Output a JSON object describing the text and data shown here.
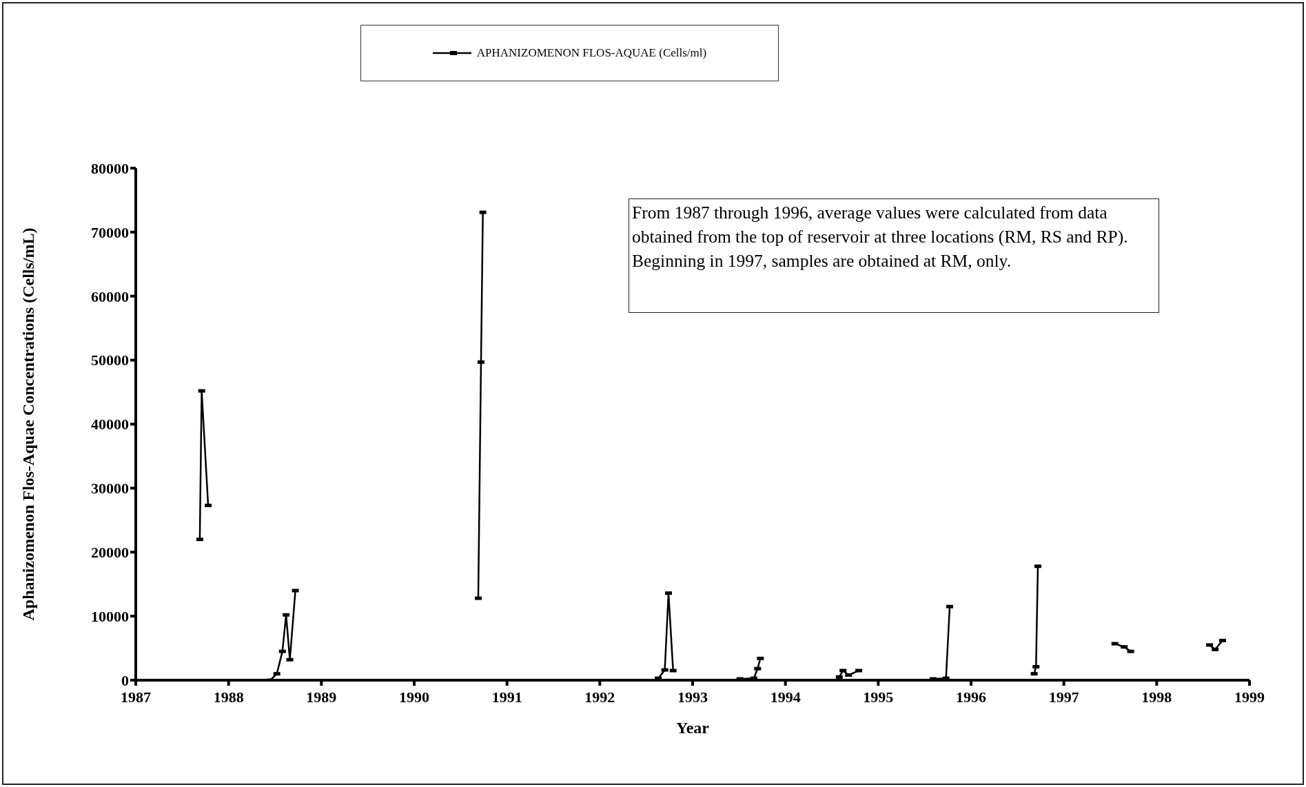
{
  "chart_data": {
    "type": "line",
    "xlabel": "Year",
    "ylabel": "Aphanizomenon Flos-Aquae Concentrations (Cells/mL)",
    "annotations": [
      "From 1987 through 1996, average values were calculated from data obtained from the top of reservoir at three  locations (RM, RS and RP).  Beginning in 1997, samples are obtained at RM, only."
    ],
    "x": [
      1987.69,
      1987.71,
      1987.78,
      1988.0,
      1988.45,
      1988.52,
      1988.58,
      1988.62,
      1988.66,
      1988.72,
      1989.0,
      1990.69,
      1990.72,
      1990.74,
      1991.0,
      1992.63,
      1992.7,
      1992.74,
      1992.79,
      1993.0,
      1993.51,
      1993.66,
      1993.7,
      1993.73,
      1994.0,
      1994.58,
      1994.62,
      1994.68,
      1994.79,
      1995.0,
      1995.59,
      1995.73,
      1995.77,
      1996.0,
      1996.68,
      1996.7,
      1996.72,
      1997.0,
      1997.55,
      1997.65,
      1997.72,
      1998.0,
      1998.57,
      1998.63,
      1998.71
    ],
    "series": [
      {
        "name": "APHANIZOMENON FLOS-AQUAE (Cells/ml)",
        "color": "#000000",
        "values": [
          22000,
          45200,
          27300,
          null,
          0,
          1000,
          4500,
          10200,
          3200,
          14000,
          null,
          12800,
          49700,
          73100,
          null,
          300,
          1600,
          13600,
          1500,
          null,
          200,
          300,
          1800,
          3400,
          null,
          500,
          1500,
          800,
          1500,
          null,
          200,
          300,
          11500,
          null,
          1000,
          2100,
          17800,
          null,
          5700,
          5200,
          4500,
          null,
          5500,
          4800,
          6200
        ]
      }
    ],
    "xlim": [
      1987,
      1999
    ],
    "xticks": [
      1987,
      1988,
      1989,
      1990,
      1991,
      1992,
      1993,
      1994,
      1995,
      1996,
      1997,
      1998,
      1999
    ],
    "ylim": [
      0,
      80000
    ],
    "yticks": [
      0,
      10000,
      20000,
      30000,
      40000,
      50000,
      60000,
      70000,
      80000
    ],
    "legend": "top",
    "marker": "square",
    "line_style": "solid",
    "grid": false
  }
}
